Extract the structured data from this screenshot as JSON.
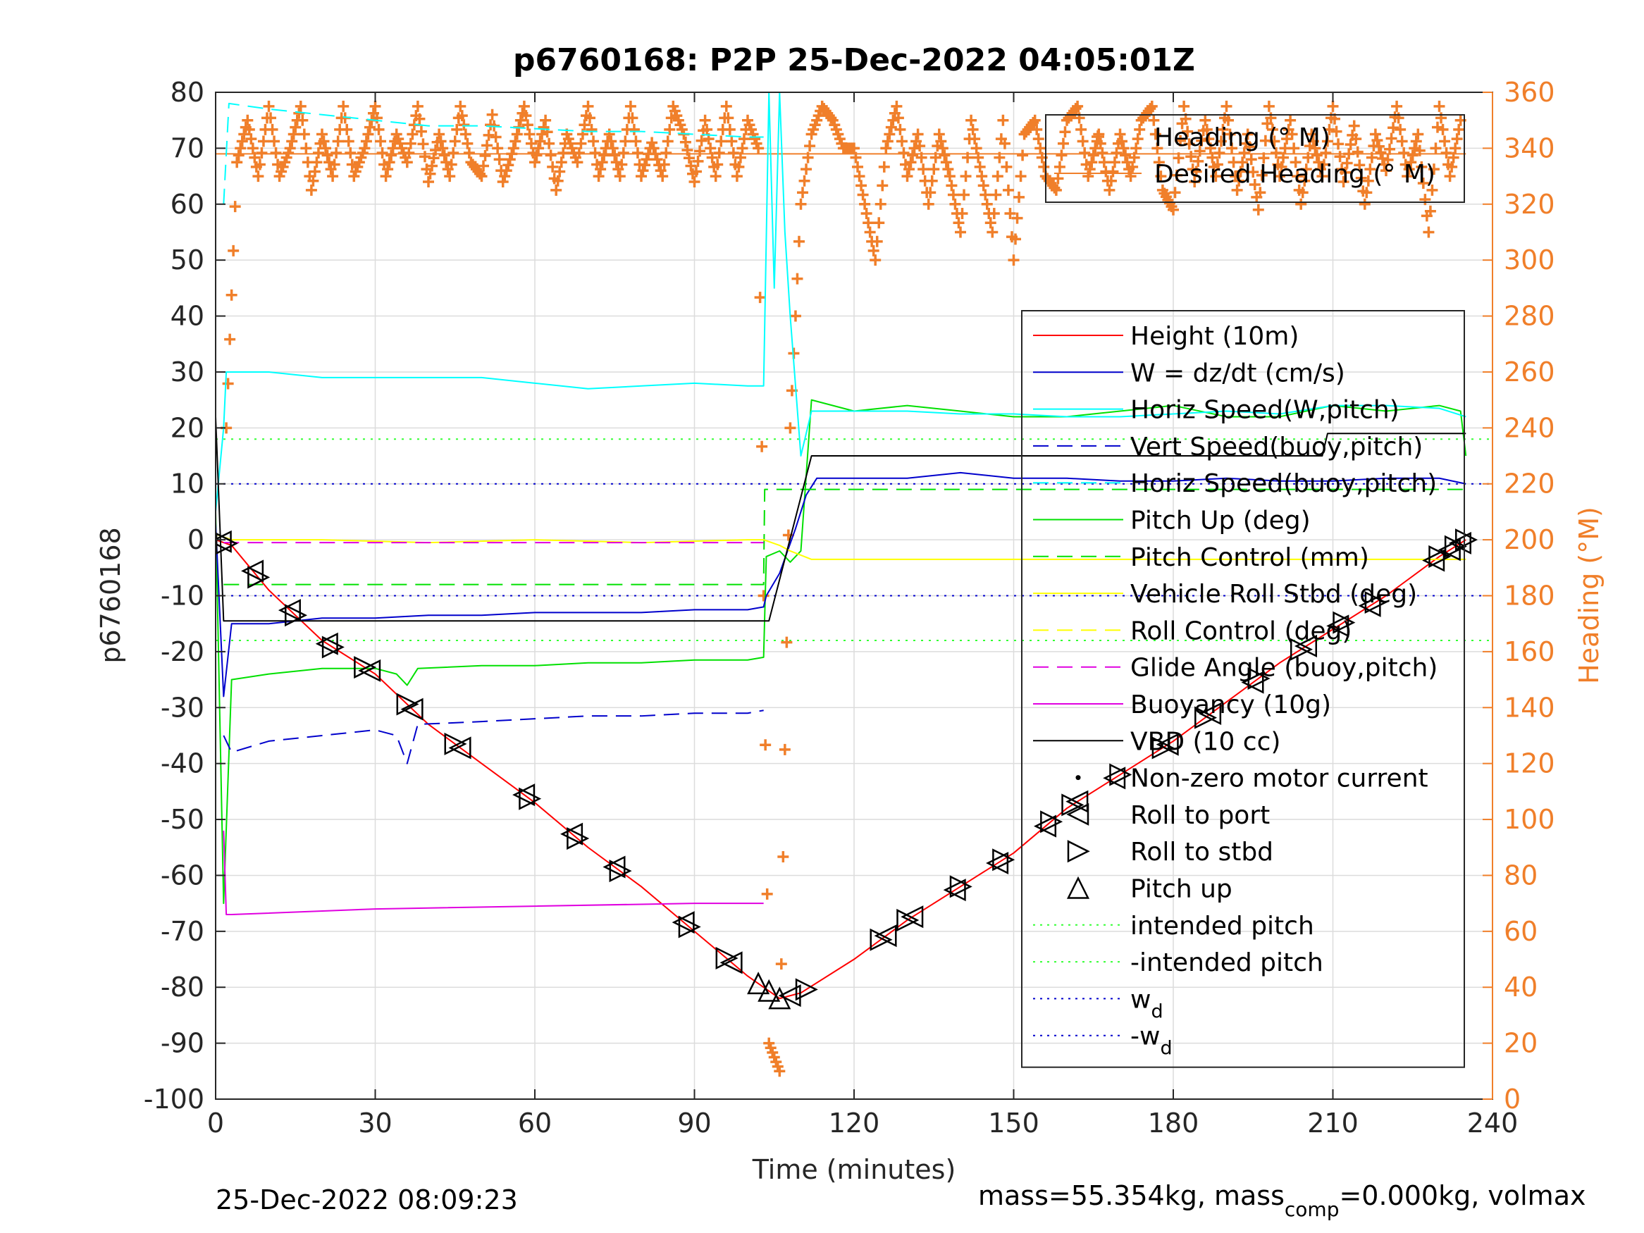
{
  "chart_data": {
    "type": "line",
    "title": "p6760168: P2P 25-Dec-2022 04:05:01Z",
    "xlabel": "Time (minutes)",
    "ylabel": "p6760168",
    "y2label": "Heading (°M)",
    "xlim": [
      0,
      240
    ],
    "ylim": [
      -100,
      80
    ],
    "y2lim": [
      0,
      360
    ],
    "xticks": [
      0,
      30,
      60,
      90,
      120,
      150,
      180,
      210,
      240
    ],
    "yticks": [
      -100,
      -90,
      -80,
      -70,
      -60,
      -50,
      -40,
      -30,
      -20,
      -10,
      0,
      10,
      20,
      30,
      40,
      50,
      60,
      70,
      80
    ],
    "y2ticks": [
      0,
      20,
      40,
      60,
      80,
      100,
      120,
      140,
      160,
      180,
      200,
      220,
      240,
      260,
      280,
      300,
      320,
      340,
      360
    ],
    "grid": true,
    "footer_left": "25-Dec-2022 08:09:23",
    "footer_right": {
      "prefix": "mass=55.354kg, mass",
      "sub": "comp",
      "suffix": "=0.000kg, volmax"
    },
    "colors": {
      "heading": "#f07f2a",
      "height": "#ff0000",
      "w": "#0000cc",
      "horiz": "#00ffff",
      "pitch": "#00e000",
      "roll": "#ffff00",
      "buoy": "#e000e0",
      "vbd": "#000000"
    },
    "legend_heading": {
      "placement": "top-right",
      "entries": [
        {
          "label": "Heading (° M)",
          "color": "#f07f2a",
          "style": "plus"
        },
        {
          "label": "Desired Heading (° M)",
          "color": "#f07f2a",
          "style": "solid"
        }
      ]
    },
    "legend_main": {
      "placement": "right",
      "entries": [
        {
          "label": "Height (10m)",
          "color": "#ff0000",
          "style": "solid"
        },
        {
          "label": "W = dz/dt (cm/s)",
          "color": "#0000cc",
          "style": "solid"
        },
        {
          "label": "Horiz Speed(W,pitch)",
          "color": "#00ffff",
          "style": "solid"
        },
        {
          "label": "Vert Speed(buoy,pitch)",
          "color": "#0000cc",
          "style": "dashed"
        },
        {
          "label": "Horiz Speed(buoy,pitch)",
          "color": "#00ffff",
          "style": "dashed"
        },
        {
          "label": "Pitch Up (deg)",
          "color": "#00e000",
          "style": "solid"
        },
        {
          "label": "Pitch Control (mm)",
          "color": "#00e000",
          "style": "dashed"
        },
        {
          "label": "Vehicle Roll Stbd (deg)",
          "color": "#ffff00",
          "style": "solid"
        },
        {
          "label": "Roll Control (deg)",
          "color": "#ffff00",
          "style": "dashed"
        },
        {
          "label": "Glide Angle (buoy,pitch)",
          "color": "#e000e0",
          "style": "dashed"
        },
        {
          "label": "Buoyancy (10g)",
          "color": "#e000e0",
          "style": "solid"
        },
        {
          "label": "VBD (10 cc)",
          "color": "#000000",
          "style": "solid"
        },
        {
          "label": "Non-zero motor current",
          "color": "#000000",
          "style": "dot"
        },
        {
          "label": "Roll to port",
          "color": "#000000",
          "style": "tri-left"
        },
        {
          "label": "Roll to stbd",
          "color": "#000000",
          "style": "tri-right"
        },
        {
          "label": "Pitch up",
          "color": "#000000",
          "style": "tri-up"
        },
        {
          "label": "intended pitch",
          "color": "#33ff33",
          "style": "dotted"
        },
        {
          "label": "-intended pitch",
          "color": "#33ff33",
          "style": "dotted"
        },
        {
          "label": "w",
          "sub": "d",
          "color": "#0000cc",
          "style": "dotted"
        },
        {
          "label": "-w",
          "sub": "d",
          "color": "#0000cc",
          "style": "dotted"
        }
      ]
    },
    "ref_lines": [
      {
        "name": "intended pitch",
        "y": 18,
        "color": "#33ff33"
      },
      {
        "name": "-intended pitch",
        "y": -18,
        "color": "#33ff33"
      },
      {
        "name": "wd",
        "y": 10,
        "color": "#0000cc"
      },
      {
        "name": "-wd",
        "y": -10,
        "color": "#0000cc"
      }
    ],
    "series": [
      {
        "name": "Height (10m)",
        "color": "#ff0000",
        "style": "solid",
        "x": [
          0,
          3,
          10,
          20,
          30,
          40,
          50,
          60,
          70,
          80,
          90,
          100,
          106,
          110,
          120,
          130,
          140,
          150,
          160,
          170,
          180,
          190,
          200,
          210,
          220,
          230,
          235
        ],
        "y": [
          0,
          -1,
          -9,
          -18,
          -24,
          -33,
          -40,
          -47,
          -55,
          -62,
          -70,
          -78,
          -82,
          -81,
          -75,
          -68,
          -62,
          -56,
          -48,
          -42,
          -36,
          -29,
          -22,
          -16,
          -10,
          -3,
          0
        ]
      },
      {
        "name": "Pitch Up (deg)",
        "color": "#00e000",
        "style": "solid",
        "x": [
          0,
          1.5,
          3,
          10,
          20,
          30,
          34,
          36,
          38,
          50,
          60,
          70,
          80,
          90,
          100,
          103,
          103.5,
          106,
          108,
          110,
          112,
          120,
          130,
          140,
          150,
          160,
          170,
          180,
          190,
          200,
          210,
          220,
          230,
          234,
          235
        ],
        "y": [
          5,
          -65,
          -25,
          -24,
          -23,
          -23,
          -24,
          -26,
          -23,
          -22.5,
          -22.5,
          -22,
          -22,
          -21.5,
          -21.5,
          -21,
          -3,
          -2,
          -4,
          -2,
          25,
          23,
          24,
          23,
          22,
          22,
          23,
          24,
          22,
          22,
          24,
          23,
          24,
          23,
          15
        ]
      },
      {
        "name": "W = dz/dt (cm/s)",
        "color": "#0000cc",
        "style": "solid",
        "x": [
          0,
          1.5,
          3,
          10,
          20,
          30,
          40,
          50,
          60,
          70,
          80,
          90,
          100,
          103,
          103.5,
          106,
          109,
          111,
          113,
          120,
          130,
          140,
          150,
          160,
          170,
          180,
          190,
          200,
          210,
          220,
          230,
          235
        ],
        "y": [
          3,
          -28,
          -15,
          -15,
          -14,
          -14,
          -13.5,
          -13.5,
          -13,
          -13,
          -13,
          -12.5,
          -12.5,
          -12,
          -10,
          -6,
          2,
          8,
          11,
          11,
          11,
          12,
          11,
          11,
          10.5,
          10.5,
          11,
          10.5,
          10.5,
          11,
          11,
          10
        ]
      },
      {
        "name": "Vert Speed(buoy,pitch)",
        "color": "#0000cc",
        "style": "dashed",
        "x": [
          1.5,
          3,
          10,
          20,
          30,
          34,
          36,
          38,
          50,
          60,
          70,
          80,
          90,
          100,
          103
        ],
        "y": [
          -35,
          -38,
          -36,
          -35,
          -34,
          -35,
          -40,
          -33,
          -32.5,
          -32,
          -31.5,
          -31.5,
          -31,
          -31,
          -30.5
        ]
      },
      {
        "name": "Horiz Speed(W,pitch)",
        "color": "#00ffff",
        "style": "solid",
        "x": [
          0,
          1.5,
          2,
          10,
          20,
          30,
          40,
          50,
          60,
          70,
          80,
          90,
          100,
          103,
          104,
          105,
          106,
          107,
          108,
          110,
          112,
          120,
          130,
          140,
          150,
          160,
          170,
          180,
          190,
          200,
          210,
          220,
          230,
          235
        ],
        "y": [
          5,
          20,
          30,
          30,
          29,
          29,
          29,
          29,
          28,
          27,
          27.5,
          28,
          27.5,
          27.5,
          80,
          45,
          80,
          55,
          40,
          15,
          23,
          23,
          23,
          22.5,
          22.5,
          22,
          22,
          22.5,
          23,
          22.5,
          24,
          24,
          23.5,
          22
        ]
      },
      {
        "name": "Horiz Speed(buoy,pitch)",
        "color": "#00ffff",
        "style": "dashed",
        "x": [
          1.5,
          2.5,
          10,
          20,
          30,
          40,
          50,
          60,
          70,
          80,
          90,
          100,
          103
        ],
        "y": [
          60,
          78,
          77,
          76,
          75,
          74,
          74,
          73.5,
          73,
          73,
          72.5,
          72,
          72
        ]
      },
      {
        "name": "Pitch Control (mm)",
        "color": "#00e000",
        "style": "dashed",
        "x": [
          1.5,
          103,
          103.2,
          235
        ],
        "y": [
          -8,
          -8,
          9,
          9
        ]
      },
      {
        "name": "Vehicle Roll Stbd (deg)",
        "color": "#ffff00",
        "style": "solid",
        "x": [
          0,
          3,
          20,
          40,
          60,
          80,
          100,
          103,
          106,
          108,
          112,
          120,
          140,
          160,
          180,
          200,
          220,
          235
        ],
        "y": [
          1,
          0,
          0,
          -0.5,
          0,
          -0.5,
          0,
          0,
          -1,
          -2,
          -3.5,
          -3.5,
          -3.5,
          -3.5,
          -3.5,
          -3.5,
          -3.5,
          -3.5
        ]
      },
      {
        "name": "VBD (10 cc)",
        "color": "#000000",
        "style": "solid",
        "x": [
          0,
          1.5,
          3,
          30,
          60,
          90,
          103,
          104,
          112,
          113,
          150,
          180,
          208,
          209,
          235
        ],
        "y": [
          22,
          -14.5,
          -14.5,
          -14.5,
          -14.5,
          -14.5,
          -14.5,
          -14.5,
          15,
          15,
          15,
          15,
          15,
          19,
          19
        ]
      },
      {
        "name": "Buoyancy (10g)",
        "color": "#e000e0",
        "style": "solid",
        "x": [
          1.5,
          2,
          3,
          30,
          60,
          90,
          103
        ],
        "y": [
          -52,
          -67,
          -67,
          -66,
          -65.5,
          -65,
          -65
        ]
      },
      {
        "name": "Glide Angle (buoy,pitch)",
        "color": "#e000e0",
        "style": "dashed",
        "x": [
          1.5,
          103
        ],
        "y": [
          -0.5,
          -0.5
        ]
      }
    ],
    "heading_series": {
      "name": "Heading (° M)",
      "color": "#f07f2a",
      "axis": "right",
      "x": [
        2,
        4,
        6,
        8,
        10,
        12,
        14,
        16,
        18,
        20,
        22,
        24,
        26,
        28,
        30,
        32,
        34,
        36,
        38,
        40,
        42,
        44,
        46,
        48,
        50,
        52,
        54,
        56,
        58,
        60,
        62,
        64,
        66,
        68,
        70,
        72,
        74,
        76,
        78,
        80,
        82,
        84,
        86,
        88,
        90,
        92,
        94,
        96,
        98,
        100,
        102,
        104,
        106,
        108,
        110,
        112,
        114,
        116,
        118,
        120,
        122,
        124,
        126,
        128,
        130,
        132,
        134,
        136,
        138,
        140,
        142,
        144,
        146,
        148,
        150,
        152,
        154,
        156,
        158,
        160,
        162,
        164,
        166,
        168,
        170,
        172,
        174,
        176,
        178,
        180,
        182,
        184,
        186,
        188,
        190,
        192,
        194,
        196,
        198,
        200,
        202,
        204,
        206,
        208,
        210,
        212,
        214,
        216,
        218,
        220,
        222,
        224,
        226,
        228,
        230,
        232,
        234
      ],
      "y": [
        240,
        335,
        350,
        330,
        355,
        330,
        340,
        355,
        325,
        345,
        330,
        355,
        330,
        340,
        355,
        330,
        345,
        335,
        355,
        328,
        345,
        330,
        355,
        335,
        330,
        352,
        328,
        340,
        355,
        335,
        350,
        325,
        345,
        335,
        355,
        330,
        345,
        330,
        355,
        330,
        342,
        330,
        355,
        345,
        328,
        350,
        330,
        355,
        330,
        350,
        340,
        20,
        10,
        240,
        320,
        345,
        355,
        350,
        340,
        340,
        320,
        300,
        340,
        355,
        330,
        345,
        320,
        345,
        330,
        310,
        350,
        330,
        310,
        350,
        300,
        345,
        350,
        330,
        325,
        350,
        355,
        330,
        345,
        325,
        345,
        330,
        350,
        355,
        325,
        318,
        355,
        328,
        350,
        330,
        355,
        325,
        345,
        318,
        355,
        330,
        350,
        320,
        345,
        330,
        355,
        328,
        348,
        320,
        345,
        332,
        355,
        330,
        345,
        310,
        355,
        330,
        350
      ]
    },
    "desired_heading": {
      "name": "Desired Heading (° M)",
      "color": "#f07f2a",
      "x": [
        0,
        235
      ],
      "y": [
        338,
        338
      ]
    },
    "markers": [
      {
        "type": "tri-left",
        "x": [
          1,
          7,
          14,
          21,
          29,
          37,
          46,
          58,
          67,
          75,
          88,
          97,
          108,
          126,
          131,
          139,
          147,
          156,
          162,
          169,
          179,
          187,
          195,
          205,
          211,
          217,
          229,
          232,
          234
        ]
      },
      {
        "type": "tri-right",
        "x": [
          2,
          8,
          15,
          22,
          28,
          36,
          45,
          59,
          68,
          76,
          89,
          96,
          111,
          125,
          130,
          140,
          148,
          157,
          161,
          170,
          178,
          186,
          196,
          204,
          212,
          218,
          230,
          233,
          235
        ]
      },
      {
        "type": "tri-up",
        "x": [
          102,
          104,
          106
        ]
      }
    ]
  }
}
